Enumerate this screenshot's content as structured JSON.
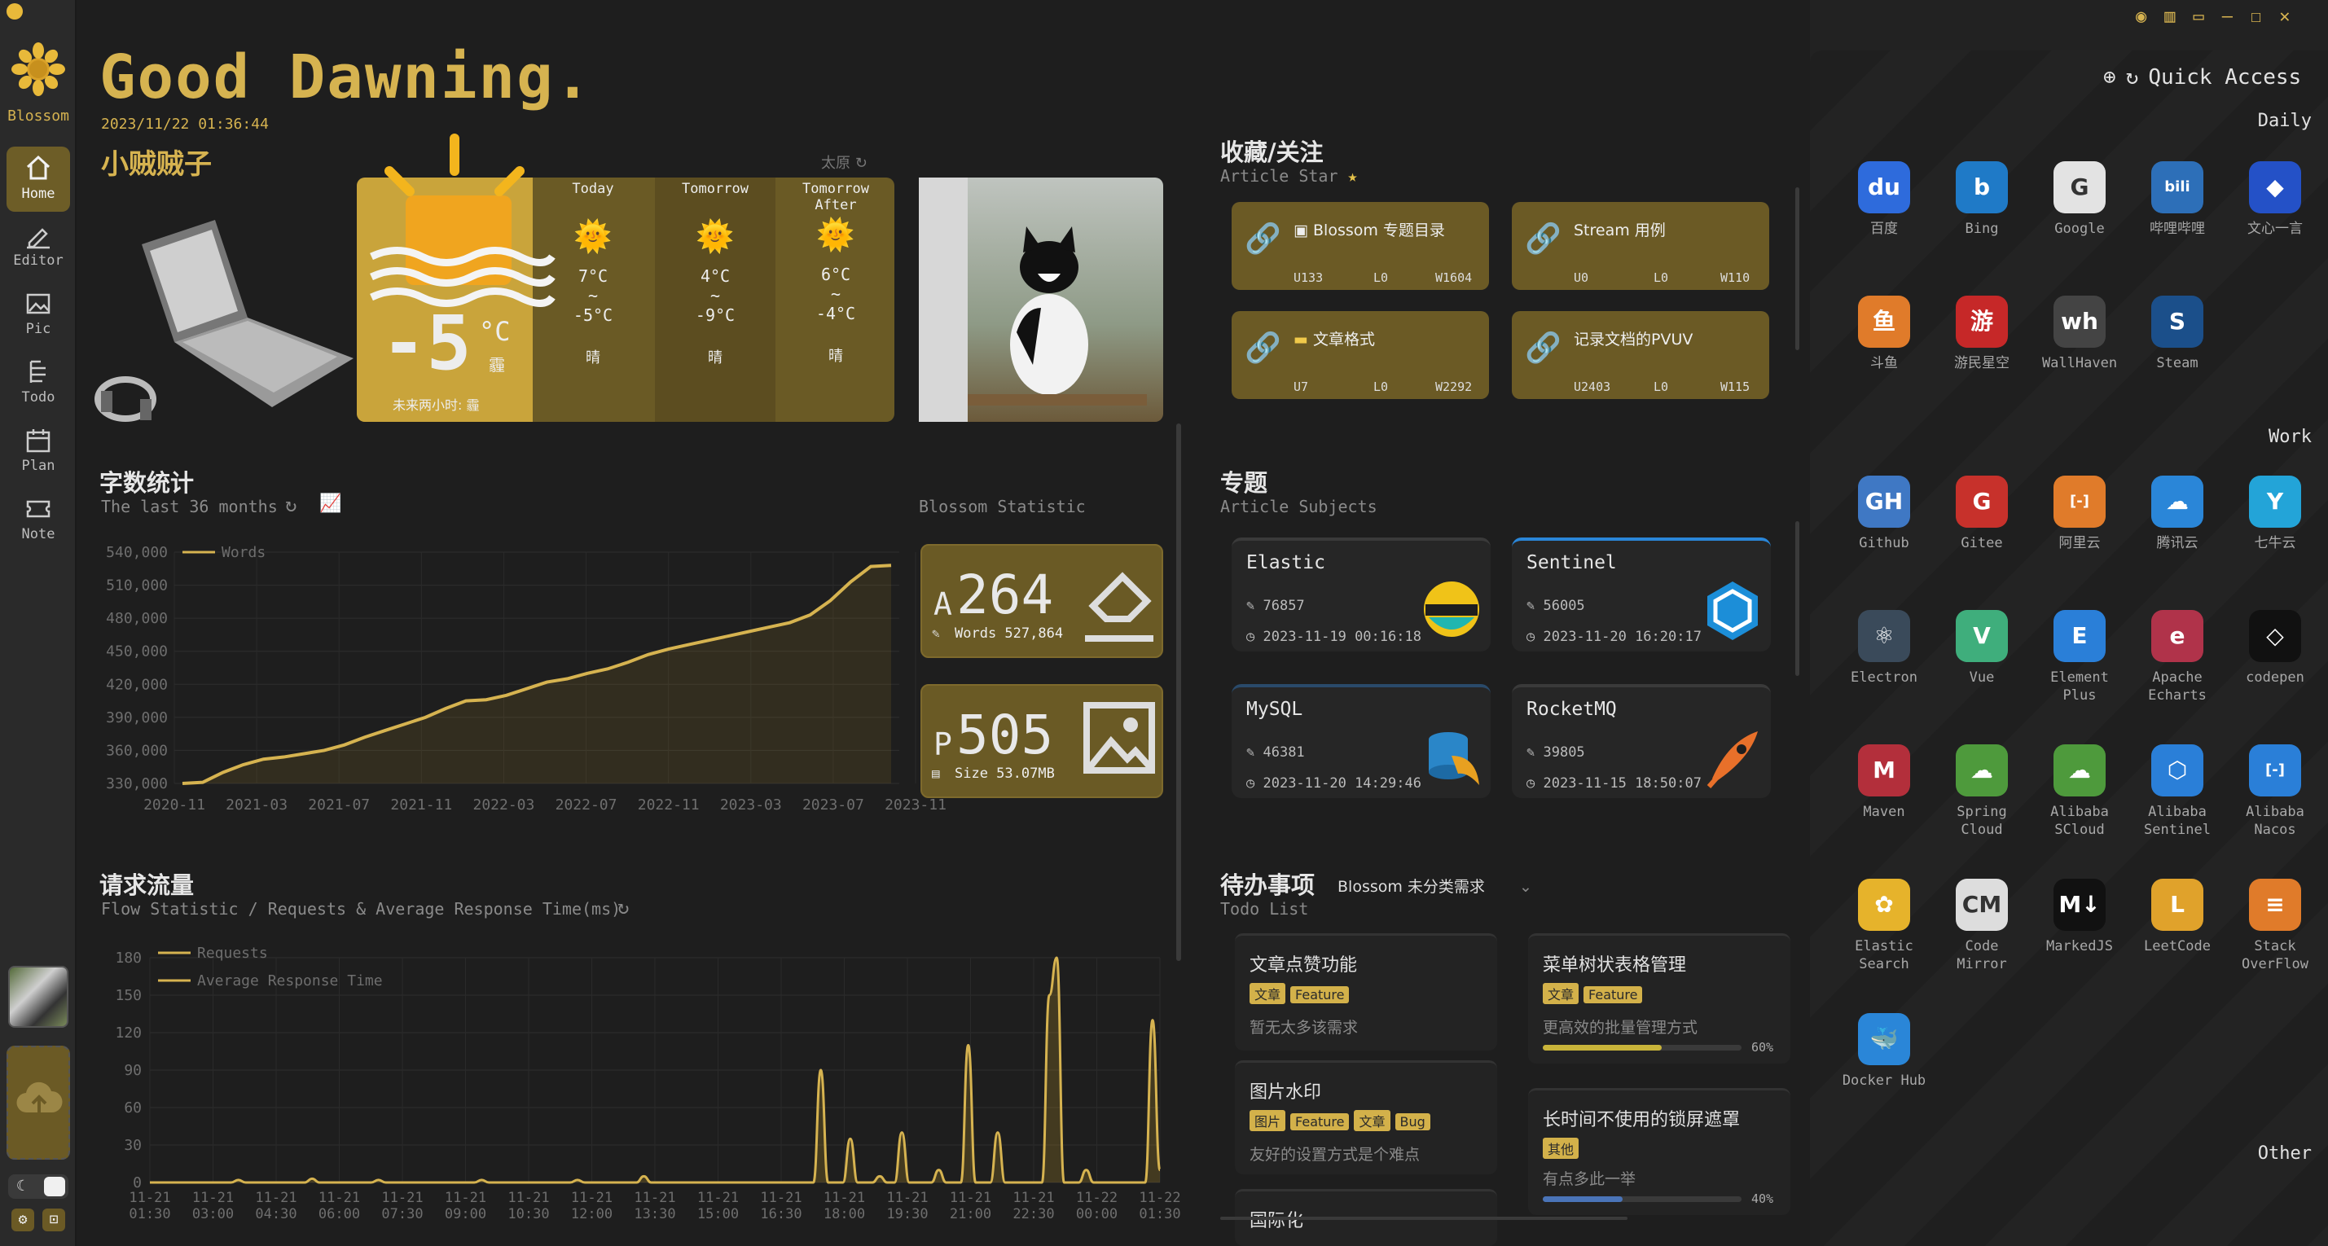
{
  "app": {
    "name": "Blossom"
  },
  "nav": [
    {
      "label": "Home",
      "icon": "home-icon",
      "active": true
    },
    {
      "label": "Editor",
      "icon": "editor-icon"
    },
    {
      "label": "Pic",
      "icon": "picture-icon"
    },
    {
      "label": "Todo",
      "icon": "todo-icon"
    },
    {
      "label": "Plan",
      "icon": "calendar-icon"
    },
    {
      "label": "Note",
      "icon": "ticket-icon"
    }
  ],
  "greeting": "Good Dawning.",
  "datetime": "2023/11/22 01:36:44",
  "username": "小贼贼子",
  "weather": {
    "city": "太原",
    "now": {
      "temp": "-5",
      "unit": "°C",
      "cond": "霾",
      "forecast_note": "未来两小时: 霾"
    },
    "days": [
      {
        "label": "Today",
        "high": "7°C",
        "sep": "~",
        "low": "-5°C",
        "cond": "晴"
      },
      {
        "label": "Tomorrow",
        "high": "4°C",
        "sep": "~",
        "low": "-9°C",
        "cond": "晴"
      },
      {
        "label": "Tomorrow After",
        "high": "6°C",
        "sep": "~",
        "low": "-4°C",
        "cond": "晴"
      }
    ]
  },
  "words": {
    "title": "字数统计",
    "subtitle": "The last 36 months",
    "stat_title": "Blossom Statistic",
    "legend": "Words",
    "article_letter": "A",
    "article_count": "264",
    "words_label": "Words 527,864",
    "pic_letter": "P",
    "pic_count": "505",
    "size_label": "Size 53.07MB"
  },
  "chart_data": [
    {
      "type": "area",
      "title": "字数统计",
      "series": [
        {
          "name": "Words",
          "values": [
            330000,
            331000,
            340000,
            347000,
            352000,
            354000,
            357000,
            360000,
            365000,
            372000,
            378000,
            384000,
            390000,
            398000,
            405000,
            406000,
            410000,
            416000,
            422000,
            425000,
            430000,
            434000,
            440000,
            447000,
            452000,
            456000,
            460000,
            464000,
            468000,
            472000,
            476000,
            483000,
            496000,
            513000,
            527000,
            528000
          ]
        }
      ],
      "yticks": [
        330000,
        360000,
        390000,
        420000,
        450000,
        480000,
        510000,
        540000
      ],
      "ytick_labels": [
        "330,000",
        "360,000",
        "390,000",
        "420,000",
        "450,000",
        "480,000",
        "510,000",
        "540,000"
      ],
      "xtick_labels": [
        "2020-11",
        "2021-03",
        "2021-07",
        "2021-11",
        "2022-03",
        "2022-07",
        "2022-11",
        "2023-03",
        "2023-07",
        "2023-11"
      ],
      "ylim": [
        330000,
        540000
      ],
      "grid": true
    },
    {
      "type": "area",
      "title": "请求流量",
      "series": [
        {
          "name": "Requests",
          "values": [
            0,
            0,
            0,
            0,
            0,
            0,
            0,
            0,
            0,
            0,
            0,
            0,
            2,
            0,
            0,
            0,
            0,
            0,
            0,
            0,
            0,
            0,
            3,
            0,
            0,
            0,
            0,
            0,
            0,
            0,
            0,
            2,
            0,
            0,
            0,
            0,
            0,
            0,
            0,
            0,
            0,
            0,
            0,
            0,
            0,
            2,
            0,
            0,
            0,
            0,
            0,
            0,
            0,
            0,
            0,
            0,
            0,
            0,
            2,
            0,
            0,
            0,
            0,
            0,
            0,
            0,
            0,
            5,
            0,
            0,
            0,
            0,
            0,
            0,
            0,
            0,
            0,
            0,
            0,
            0,
            0,
            0,
            0,
            0,
            0,
            0,
            0,
            0,
            0,
            0,
            0,
            90,
            0,
            0,
            0,
            35,
            0,
            0,
            0,
            5,
            0,
            0,
            40,
            0,
            0,
            0,
            0,
            10,
            0,
            0,
            0,
            110,
            0,
            0,
            0,
            40,
            0,
            0,
            0,
            0,
            0,
            0,
            150,
            180,
            0,
            0,
            0,
            10,
            0,
            0,
            0,
            0,
            0,
            0,
            0,
            0,
            130,
            10
          ]
        },
        {
          "name": "Average Response Time",
          "values": []
        }
      ],
      "yticks": [
        0,
        30,
        60,
        90,
        120,
        150,
        180
      ],
      "xtick_labels": [
        "11-21 01:30",
        "11-21 03:00",
        "11-21 04:30",
        "11-21 06:00",
        "11-21 07:30",
        "11-21 09:00",
        "11-21 10:30",
        "11-21 12:00",
        "11-21 13:30",
        "11-21 15:00",
        "11-21 16:30",
        "11-21 18:00",
        "11-21 19:30",
        "11-21 21:00",
        "11-21 22:30",
        "11-22 00:00",
        "11-22 01:30"
      ],
      "ylim": [
        0,
        180
      ],
      "grid": true
    }
  ],
  "flow": {
    "title": "请求流量",
    "subtitle": "Flow Statistic / Requests & Average Response Time(ms)",
    "legend1": "Requests",
    "legend2": "Average Response Time"
  },
  "star": {
    "title": "收藏/关注",
    "subtitle": "Article Star",
    "items": [
      {
        "title": "Blossom 专题目录",
        "u": "U133",
        "l": "L0",
        "w": "W1604"
      },
      {
        "title": "Stream 用例",
        "u": "U0",
        "l": "L0",
        "w": "W110"
      },
      {
        "title": "文章格式",
        "u": "U7",
        "l": "L0",
        "w": "W2292"
      },
      {
        "title": "记录文档的PVUV",
        "u": "U2403",
        "l": "L0",
        "w": "W115"
      }
    ]
  },
  "subjects": {
    "title": "专题",
    "subtitle": "Article Subjects",
    "items": [
      {
        "name": "Elastic",
        "count": "76857",
        "date": "2023-11-19 00:16:18"
      },
      {
        "name": "Sentinel",
        "count": "56005",
        "date": "2023-11-20 16:20:17"
      },
      {
        "name": "MySQL",
        "count": "46381",
        "date": "2023-11-20 14:29:46"
      },
      {
        "name": "RocketMQ",
        "count": "39805",
        "date": "2023-11-15 18:50:07"
      }
    ]
  },
  "todos": {
    "title": "待办事项",
    "subtitle": "Todo List",
    "selector": "Blossom 未分类需求",
    "items": [
      {
        "title": "文章点赞功能",
        "tags": [
          "文章",
          "Feature"
        ],
        "desc": "暂无太多该需求"
      },
      {
        "title": "菜单树状表格管理",
        "tags": [
          "文章",
          "Feature"
        ],
        "desc": "更高效的批量管理方式",
        "progress": "60%",
        "pct": 0.6
      },
      {
        "title": "图片水印",
        "tags": [
          "图片",
          "Feature",
          "文章",
          "Bug"
        ],
        "desc": "友好的设置方式是个难点"
      },
      {
        "title": "长时间不使用的锁屏遮罩",
        "tags": [
          "其他"
        ],
        "desc": "有点多此一举",
        "progress": "40%",
        "pct": 0.4
      },
      {
        "title": "国际化"
      }
    ]
  },
  "quick": {
    "title": "Quick Access",
    "daily_label": "Daily",
    "work_label": "Work",
    "other_label": "Other",
    "daily": [
      {
        "name": "百度",
        "color": "#2e6bdc",
        "icon": "baidu-icon",
        "glyph": "du"
      },
      {
        "name": "Bing",
        "color": "#1f7ac7",
        "icon": "bing-icon",
        "glyph": "b"
      },
      {
        "name": "Google",
        "color": "#e3e3e3",
        "icon": "google-icon",
        "glyph": "G"
      },
      {
        "name": "哔哩哔哩",
        "color": "#2d6fb8",
        "icon": "bilibili-icon",
        "glyph": "bili"
      },
      {
        "name": "文心一言",
        "color": "#2451c7",
        "icon": "wenxin-icon",
        "glyph": "◆"
      },
      {
        "name": "斗鱼",
        "color": "#e07b2a",
        "icon": "douyu-icon",
        "glyph": "鱼"
      },
      {
        "name": "游民星空",
        "color": "#c62828",
        "icon": "gamersky-icon",
        "glyph": "游"
      },
      {
        "name": "WallHaven",
        "color": "#444444",
        "icon": "wallhaven-icon",
        "glyph": "wh"
      },
      {
        "name": "Steam",
        "color": "#1b4f8a",
        "icon": "steam-icon",
        "glyph": "S"
      }
    ],
    "work": [
      {
        "name": "Github",
        "color": "#3f78c4",
        "icon": "github-icon",
        "glyph": "GH"
      },
      {
        "name": "Gitee",
        "color": "#c7312b",
        "icon": "gitee-icon",
        "glyph": "G"
      },
      {
        "name": "阿里云",
        "color": "#e07b2a",
        "icon": "aliyun-icon",
        "glyph": "[-]"
      },
      {
        "name": "腾讯云",
        "color": "#2a86d8",
        "icon": "tencentcloud-icon",
        "glyph": "☁"
      },
      {
        "name": "七牛云",
        "color": "#23a4d8",
        "icon": "qiniu-icon",
        "glyph": "Y"
      },
      {
        "name": "Electron",
        "color": "#3a4a5a",
        "icon": "electron-icon",
        "glyph": "⚛"
      },
      {
        "name": "Vue",
        "color": "#3fae7c",
        "icon": "vue-icon",
        "glyph": "V"
      },
      {
        "name": "Element Plus",
        "color": "#2a7fd8",
        "icon": "element-plus-icon",
        "glyph": "E"
      },
      {
        "name": "Apache Echarts",
        "color": "#b0334a",
        "icon": "echarts-icon",
        "glyph": "e"
      },
      {
        "name": "codepen",
        "color": "#111111",
        "icon": "codepen-icon",
        "glyph": "◇"
      },
      {
        "name": "Maven",
        "color": "#b32f3b",
        "icon": "maven-icon",
        "glyph": "M"
      },
      {
        "name": "Spring Cloud",
        "color": "#4e9a3c",
        "icon": "spring-icon",
        "glyph": "☁"
      },
      {
        "name": "Alibaba SCloud",
        "color": "#4e9a3c",
        "icon": "alibaba-scloud-icon",
        "glyph": "☁"
      },
      {
        "name": "Alibaba Sentinel",
        "color": "#2a7fd8",
        "icon": "sentinel-icon",
        "glyph": "⬡"
      },
      {
        "name": "Alibaba Nacos",
        "color": "#2a7fd8",
        "icon": "nacos-icon",
        "glyph": "[-]"
      },
      {
        "name": "Elastic Search",
        "color": "#e6b32b",
        "icon": "elasticsearch-icon",
        "glyph": "✿"
      },
      {
        "name": "Code Mirror",
        "color": "#dddddd",
        "icon": "codemirror-icon",
        "glyph": "CM"
      },
      {
        "name": "MarkedJS",
        "color": "#111111",
        "icon": "markedjs-icon",
        "glyph": "M↓"
      },
      {
        "name": "LeetCode",
        "color": "#e0a22b",
        "icon": "leetcode-icon",
        "glyph": "L"
      },
      {
        "name": "Stack OverFlow",
        "color": "#e07b2a",
        "icon": "stackoverflow-icon",
        "glyph": "≡"
      },
      {
        "name": "Docker Hub",
        "color": "#2a86d8",
        "icon": "docker-icon",
        "glyph": "🐳"
      }
    ]
  }
}
